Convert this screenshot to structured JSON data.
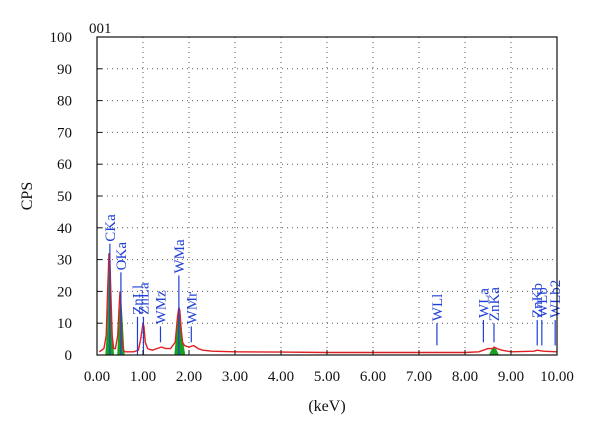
{
  "chart_data": {
    "type": "line",
    "title": "001",
    "xlabel": "(keV)",
    "ylabel": "CPS",
    "xlim": [
      0,
      10
    ],
    "ylim": [
      0,
      100
    ],
    "xticks": [
      "0.00",
      "1.00",
      "2.00",
      "3.00",
      "4.00",
      "5.00",
      "6.00",
      "7.00",
      "8.00",
      "9.00",
      "10.00"
    ],
    "yticks": [
      "0",
      "10",
      "20",
      "30",
      "40",
      "50",
      "60",
      "70",
      "80",
      "90",
      "100"
    ],
    "grid": true,
    "colors": {
      "spectrum": "#e02020",
      "peak_fill": "#18a020",
      "labels": "#1f3fd6",
      "grid": "#555555"
    },
    "series": [
      {
        "x": [
          0.05,
          0.15,
          0.2,
          0.23,
          0.26,
          0.28,
          0.3,
          0.33,
          0.36,
          0.4,
          0.45,
          0.48,
          0.5,
          0.52,
          0.54,
          0.56,
          0.6,
          0.7,
          0.8,
          0.9,
          0.95,
          1.0,
          1.02,
          1.05,
          1.1,
          1.2,
          1.3,
          1.4,
          1.5,
          1.6,
          1.7,
          1.75,
          1.78,
          1.8,
          1.83,
          1.86,
          1.9,
          2.0,
          2.1,
          2.2,
          2.3,
          2.5,
          3.0,
          4.0,
          5.0,
          6.0,
          7.0,
          8.0,
          8.3,
          8.4,
          8.5,
          8.6,
          8.63,
          8.7,
          8.8,
          9.0,
          9.5,
          9.57,
          9.7,
          10.0
        ],
        "values": [
          1,
          2,
          6,
          20,
          32,
          30,
          20,
          6,
          2,
          2,
          6,
          15,
          20,
          15,
          6,
          2,
          1,
          1,
          1,
          1.5,
          5,
          10,
          9,
          4,
          2,
          1.5,
          2,
          2.5,
          2,
          2,
          4,
          12,
          15,
          14,
          8,
          4,
          3,
          2.5,
          3,
          2,
          1.5,
          1.2,
          1,
          0.9,
          0.8,
          0.8,
          0.8,
          0.8,
          1,
          1.5,
          2,
          2,
          2.5,
          2,
          1.5,
          1,
          1.2,
          1.5,
          1.2,
          1
        ]
      }
    ],
    "peak_fills": [
      {
        "x": [
          0.18,
          0.22,
          0.25,
          0.28,
          0.3,
          0.33,
          0.37
        ],
        "values": [
          0,
          8,
          26,
          32,
          25,
          8,
          0
        ]
      },
      {
        "x": [
          0.44,
          0.48,
          0.52,
          0.56,
          0.6
        ],
        "values": [
          0,
          12,
          20,
          10,
          0
        ]
      },
      {
        "x": [
          1.68,
          1.72,
          1.76,
          1.79,
          1.82,
          1.86,
          1.92
        ],
        "values": [
          0,
          6,
          14,
          15,
          12,
          5,
          0
        ]
      },
      {
        "x": [
          8.52,
          8.58,
          8.63,
          8.68,
          8.74
        ],
        "values": [
          0,
          1.8,
          2.4,
          1.8,
          0
        ]
      }
    ],
    "annotations": [
      {
        "label": "CKa",
        "x": 0.28,
        "low": 0,
        "high": 35
      },
      {
        "label": "OKa",
        "x": 0.52,
        "low": 0,
        "high": 26
      },
      {
        "label": "ZnLl",
        "x": 0.88,
        "low": 0,
        "high": 12
      },
      {
        "label": "ZnLa",
        "x": 1.01,
        "low": 0,
        "high": 12
      },
      {
        "label": "WMz",
        "x": 1.38,
        "low": 4,
        "high": 9
      },
      {
        "label": "WMa",
        "x": 1.78,
        "low": 0,
        "high": 25
      },
      {
        "label": "WMr",
        "x": 2.05,
        "low": 4,
        "high": 9
      },
      {
        "label": "WLl",
        "x": 7.39,
        "low": 3,
        "high": 10
      },
      {
        "label": "WLa",
        "x": 8.4,
        "low": 4,
        "high": 11
      },
      {
        "label": "ZnKa",
        "x": 8.63,
        "low": 4,
        "high": 10
      },
      {
        "label": "ZnKb",
        "x": 9.57,
        "low": 3,
        "high": 11
      },
      {
        "label": "WLb",
        "x": 9.67,
        "low": 3,
        "high": 11
      },
      {
        "label": "WLb2",
        "x": 9.96,
        "low": 3,
        "high": 11
      }
    ]
  }
}
